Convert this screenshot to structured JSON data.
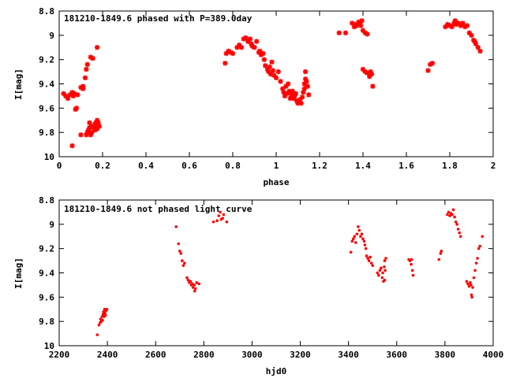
{
  "chart_data": [
    {
      "type": "scatter",
      "title": "181210-1849.6 phased with P=389.0day",
      "xlabel": "phase",
      "ylabel": "I[mag]",
      "xlim": [
        0,
        2
      ],
      "ylim": [
        10,
        8.8
      ],
      "y_inverted": true,
      "xticks": [
        "0",
        "0.2",
        "0.4",
        "0.6",
        "0.8",
        "1",
        "1.2",
        "1.4",
        "1.6",
        "1.8",
        "2"
      ],
      "yticks": [
        "8.8",
        "9",
        "9.2",
        "9.4",
        "9.6",
        "9.8",
        "10"
      ],
      "marker_color": "#ff0000",
      "marker": "asterisk",
      "grid": false,
      "points": [
        [
          0.02,
          9.48
        ],
        [
          0.03,
          9.5
        ],
        [
          0.04,
          9.52
        ],
        [
          0.05,
          9.49
        ],
        [
          0.06,
          9.47
        ],
        [
          0.065,
          9.5
        ],
        [
          0.07,
          9.48
        ],
        [
          0.075,
          9.61
        ],
        [
          0.08,
          9.6
        ],
        [
          0.085,
          9.49
        ],
        [
          0.06,
          9.91
        ],
        [
          0.1,
          9.82
        ],
        [
          0.1,
          9.43
        ],
        [
          0.11,
          9.42
        ],
        [
          0.11,
          9.44
        ],
        [
          0.12,
          9.35
        ],
        [
          0.125,
          9.28
        ],
        [
          0.13,
          9.24
        ],
        [
          0.125,
          9.82
        ],
        [
          0.13,
          9.8
        ],
        [
          0.135,
          9.78
        ],
        [
          0.14,
          9.76
        ],
        [
          0.14,
          9.72
        ],
        [
          0.145,
          9.18
        ],
        [
          0.145,
          9.82
        ],
        [
          0.15,
          9.8
        ],
        [
          0.15,
          9.75
        ],
        [
          0.155,
          9.19
        ],
        [
          0.16,
          9.76
        ],
        [
          0.165,
          9.78
        ],
        [
          0.165,
          9.73
        ],
        [
          0.17,
          9.72
        ],
        [
          0.17,
          9.75
        ],
        [
          0.175,
          9.7
        ],
        [
          0.175,
          9.77
        ],
        [
          0.18,
          9.72
        ],
        [
          0.185,
          9.75
        ],
        [
          0.175,
          9.1
        ],
        [
          0.18,
          9.74
        ],
        [
          0.765,
          9.23
        ],
        [
          0.77,
          9.15
        ],
        [
          0.78,
          9.13
        ],
        [
          0.79,
          9.14
        ],
        [
          0.8,
          9.15
        ],
        [
          0.82,
          9.1
        ],
        [
          0.83,
          9.08
        ],
        [
          0.84,
          9.1
        ],
        [
          0.85,
          9.03
        ],
        [
          0.86,
          9.02
        ],
        [
          0.87,
          9.05
        ],
        [
          0.88,
          9.03
        ],
        [
          0.885,
          9.07
        ],
        [
          0.89,
          9.09
        ],
        [
          0.9,
          9.1
        ],
        [
          0.91,
          9.05
        ],
        [
          0.92,
          9.14
        ],
        [
          0.925,
          9.13
        ],
        [
          0.93,
          9.16
        ],
        [
          0.94,
          9.15
        ],
        [
          0.945,
          9.2
        ],
        [
          0.95,
          9.25
        ],
        [
          0.96,
          9.28
        ],
        [
          0.965,
          9.3
        ],
        [
          0.97,
          9.26
        ],
        [
          0.975,
          9.32
        ],
        [
          0.98,
          9.22
        ],
        [
          0.985,
          9.29
        ],
        [
          0.99,
          9.33
        ],
        [
          1.0,
          9.35
        ],
        [
          1.01,
          9.3
        ],
        [
          1.02,
          9.38
        ],
        [
          1.03,
          9.44
        ],
        [
          1.035,
          9.47
        ],
        [
          1.04,
          9.5
        ],
        [
          1.045,
          9.42
        ],
        [
          1.05,
          9.48
        ],
        [
          1.055,
          9.4
        ],
        [
          1.06,
          9.46
        ],
        [
          1.065,
          9.52
        ],
        [
          1.07,
          9.49
        ],
        [
          1.075,
          9.46
        ],
        [
          1.08,
          9.52
        ],
        [
          1.085,
          9.5
        ],
        [
          1.09,
          9.48
        ],
        [
          1.095,
          9.54
        ],
        [
          1.1,
          9.56
        ],
        [
          1.105,
          9.55
        ],
        [
          1.11,
          9.53
        ],
        [
          1.115,
          9.56
        ],
        [
          1.12,
          9.51
        ],
        [
          1.125,
          9.47
        ],
        [
          1.13,
          9.44
        ],
        [
          1.13,
          9.4
        ],
        [
          1.135,
          9.36
        ],
        [
          1.135,
          9.3
        ],
        [
          1.14,
          9.38
        ],
        [
          1.145,
          9.42
        ],
        [
          1.15,
          9.49
        ],
        [
          1.29,
          8.98
        ],
        [
          1.32,
          8.98
        ],
        [
          1.35,
          8.9
        ],
        [
          1.36,
          8.93
        ],
        [
          1.365,
          8.91
        ],
        [
          1.37,
          8.92
        ],
        [
          1.38,
          8.89
        ],
        [
          1.385,
          8.9
        ],
        [
          1.39,
          8.92
        ],
        [
          1.395,
          8.88
        ],
        [
          1.4,
          8.96
        ],
        [
          1.4,
          9.28
        ],
        [
          1.41,
          8.98
        ],
        [
          1.41,
          9.3
        ],
        [
          1.42,
          8.99
        ],
        [
          1.42,
          9.31
        ],
        [
          1.43,
          9.34
        ],
        [
          1.435,
          9.3
        ],
        [
          1.44,
          9.32
        ],
        [
          1.445,
          9.42
        ],
        [
          1.7,
          9.29
        ],
        [
          1.71,
          9.24
        ],
        [
          1.72,
          9.23
        ],
        [
          1.78,
          8.93
        ],
        [
          1.79,
          8.91
        ],
        [
          1.8,
          8.92
        ],
        [
          1.81,
          8.93
        ],
        [
          1.82,
          8.9
        ],
        [
          1.825,
          8.88
        ],
        [
          1.83,
          8.91
        ],
        [
          1.84,
          8.9
        ],
        [
          1.85,
          8.92
        ],
        [
          1.86,
          8.9
        ],
        [
          1.87,
          8.93
        ],
        [
          1.88,
          8.92
        ],
        [
          1.89,
          8.98
        ],
        [
          1.9,
          9.0
        ],
        [
          1.91,
          9.04
        ],
        [
          1.915,
          9.05
        ],
        [
          1.92,
          9.07
        ],
        [
          1.93,
          9.1
        ],
        [
          1.94,
          9.13
        ]
      ]
    },
    {
      "type": "scatter",
      "title": "181210-1849.6 not phased light curve",
      "xlabel": "hjd0",
      "ylabel": "I[mag]",
      "xlim": [
        2200,
        4000
      ],
      "ylim": [
        10,
        8.8
      ],
      "y_inverted": true,
      "xticks": [
        "2200",
        "2400",
        "2600",
        "2800",
        "3000",
        "3200",
        "3400",
        "3600",
        "3800",
        "4000"
      ],
      "yticks": [
        "8.8",
        "9",
        "9.2",
        "9.4",
        "9.6",
        "9.8",
        "10"
      ],
      "marker_color": "#ff0000",
      "marker": "dot",
      "grid": false,
      "points": [
        [
          2358,
          9.91
        ],
        [
          2365,
          9.83
        ],
        [
          2370,
          9.81
        ],
        [
          2372,
          9.78
        ],
        [
          2375,
          9.8
        ],
        [
          2378,
          9.76
        ],
        [
          2380,
          9.79
        ],
        [
          2382,
          9.74
        ],
        [
          2384,
          9.72
        ],
        [
          2386,
          9.76
        ],
        [
          2388,
          9.7
        ],
        [
          2390,
          9.73
        ],
        [
          2392,
          9.75
        ],
        [
          2395,
          9.71
        ],
        [
          2398,
          9.7
        ],
        [
          2685,
          9.02
        ],
        [
          2695,
          9.16
        ],
        [
          2700,
          9.22
        ],
        [
          2705,
          9.24
        ],
        [
          2710,
          9.3
        ],
        [
          2715,
          9.34
        ],
        [
          2720,
          9.32
        ],
        [
          2730,
          9.44
        ],
        [
          2735,
          9.46
        ],
        [
          2740,
          9.48
        ],
        [
          2745,
          9.47
        ],
        [
          2748,
          9.5
        ],
        [
          2752,
          9.49
        ],
        [
          2755,
          9.52
        ],
        [
          2760,
          9.5
        ],
        [
          2762,
          9.55
        ],
        [
          2765,
          9.53
        ],
        [
          2770,
          9.48
        ],
        [
          2780,
          9.49
        ],
        [
          2840,
          8.98
        ],
        [
          2855,
          8.97
        ],
        [
          2862,
          8.93
        ],
        [
          2868,
          8.9
        ],
        [
          2872,
          8.96
        ],
        [
          2878,
          8.95
        ],
        [
          2882,
          8.92
        ],
        [
          2895,
          8.98
        ],
        [
          3410,
          9.23
        ],
        [
          3415,
          9.14
        ],
        [
          3420,
          9.12
        ],
        [
          3425,
          9.1
        ],
        [
          3430,
          9.15
        ],
        [
          3435,
          9.08
        ],
        [
          3440,
          9.02
        ],
        [
          3445,
          9.05
        ],
        [
          3450,
          9.1
        ],
        [
          3455,
          9.08
        ],
        [
          3460,
          9.12
        ],
        [
          3465,
          9.14
        ],
        [
          3468,
          9.17
        ],
        [
          3472,
          9.2
        ],
        [
          3475,
          9.26
        ],
        [
          3480,
          9.28
        ],
        [
          3485,
          9.3
        ],
        [
          3490,
          9.27
        ],
        [
          3495,
          9.32
        ],
        [
          3500,
          9.34
        ],
        [
          3520,
          9.4
        ],
        [
          3525,
          9.42
        ],
        [
          3530,
          9.38
        ],
        [
          3535,
          9.36
        ],
        [
          3540,
          9.44
        ],
        [
          3542,
          9.4
        ],
        [
          3545,
          9.47
        ],
        [
          3548,
          9.35
        ],
        [
          3550,
          9.3
        ],
        [
          3552,
          9.38
        ],
        [
          3555,
          9.28
        ],
        [
          3550,
          9.46
        ],
        [
          3650,
          9.29
        ],
        [
          3655,
          9.3
        ],
        [
          3660,
          9.33
        ],
        [
          3662,
          9.29
        ],
        [
          3665,
          9.38
        ],
        [
          3668,
          9.42
        ],
        [
          3775,
          9.29
        ],
        [
          3782,
          9.24
        ],
        [
          3785,
          9.22
        ],
        [
          3810,
          8.92
        ],
        [
          3815,
          8.9
        ],
        [
          3820,
          8.93
        ],
        [
          3825,
          8.91
        ],
        [
          3830,
          8.92
        ],
        [
          3835,
          8.88
        ],
        [
          3840,
          8.94
        ],
        [
          3845,
          8.98
        ],
        [
          3850,
          9.0
        ],
        [
          3855,
          9.04
        ],
        [
          3860,
          9.07
        ],
        [
          3865,
          9.1
        ],
        [
          3890,
          9.47
        ],
        [
          3895,
          9.49
        ],
        [
          3900,
          9.51
        ],
        [
          3905,
          9.48
        ],
        [
          3908,
          9.5
        ],
        [
          3910,
          9.58
        ],
        [
          3912,
          9.6
        ],
        [
          3915,
          9.52
        ],
        [
          3920,
          9.44
        ],
        [
          3925,
          9.38
        ],
        [
          3930,
          9.32
        ],
        [
          3935,
          9.28
        ],
        [
          3940,
          9.2
        ],
        [
          3945,
          9.18
        ],
        [
          3955,
          9.1
        ]
      ]
    }
  ]
}
